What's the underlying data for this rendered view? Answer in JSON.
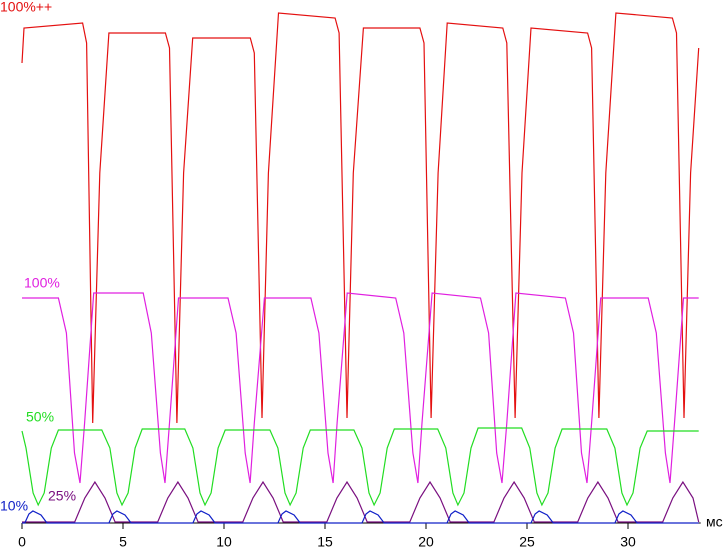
{
  "chart_data": {
    "type": "line",
    "x_label": "мс",
    "xlim": [
      0,
      33.6
    ],
    "xticks": [
      0,
      5,
      10,
      15,
      20,
      25,
      30
    ],
    "ylim": [
      0,
      103
    ],
    "series": [
      {
        "name": "100%++",
        "color": "#e41010",
        "x": [
          0,
          0.1,
          3.0,
          3.2,
          3.5,
          3.85,
          4.3,
          7.1,
          7.3,
          7.67,
          8.0,
          8.45,
          11.3,
          11.5,
          11.88,
          12.2,
          12.7,
          15.5,
          15.7,
          16.09,
          16.4,
          16.9,
          19.7,
          19.9,
          20.25,
          20.6,
          21.05,
          23.8,
          24.0,
          24.41,
          24.75,
          25.2,
          28.0,
          28.2,
          28.56,
          28.9,
          29.4,
          32.2,
          32.4,
          32.77,
          33.1,
          33.5
        ],
        "values": [
          92,
          99,
          100,
          96,
          20,
          70,
          98,
          98,
          95,
          20,
          70,
          97,
          97,
          94,
          21,
          70,
          102,
          101,
          98,
          21,
          70,
          99,
          99,
          96,
          21,
          70,
          100,
          99,
          96,
          21,
          70,
          99,
          98,
          95,
          21,
          70,
          102,
          101,
          98,
          21,
          70,
          95
        ]
      },
      {
        "name": "100%",
        "color": "#e020e0",
        "x": [
          0,
          1.8,
          2.2,
          2.6,
          2.87,
          3.1,
          3.55,
          6.0,
          6.4,
          6.85,
          7.08,
          7.3,
          7.75,
          10.2,
          10.6,
          11.05,
          11.29,
          11.5,
          12.0,
          14.3,
          14.7,
          15.15,
          15.4,
          15.6,
          16.1,
          18.5,
          18.9,
          19.35,
          19.6,
          19.8,
          20.3,
          22.7,
          23.1,
          23.5,
          23.76,
          24.0,
          24.45,
          26.9,
          27.3,
          27.7,
          27.97,
          28.2,
          28.65,
          31.0,
          31.4,
          31.85,
          32.08,
          32.3,
          32.75,
          33.5
        ],
        "values": [
          45,
          45,
          38,
          14,
          8,
          20,
          46,
          46,
          38,
          14,
          8,
          20,
          45,
          45,
          38,
          14,
          8,
          20,
          45,
          45,
          38,
          14,
          8,
          20,
          46,
          45,
          38,
          14,
          8,
          20,
          46,
          45,
          38,
          14,
          8,
          20,
          46,
          45,
          38,
          14,
          8,
          20,
          45,
          45,
          38,
          14,
          8,
          20,
          45,
          45
        ]
      },
      {
        "name": "50%",
        "color": "#22dd22",
        "x": [
          0,
          0.2,
          0.55,
          0.8,
          1.1,
          1.45,
          1.8,
          3.95,
          4.35,
          4.7,
          4.95,
          5.25,
          5.6,
          5.95,
          8.06,
          8.46,
          8.81,
          9.06,
          9.36,
          9.71,
          10.06,
          12.27,
          12.67,
          13.02,
          13.27,
          13.57,
          13.92,
          14.27,
          16.43,
          16.83,
          17.18,
          17.43,
          17.73,
          18.08,
          18.43,
          20.58,
          20.98,
          21.33,
          21.58,
          21.88,
          22.23,
          22.58,
          24.74,
          25.14,
          25.49,
          25.74,
          26.04,
          26.39,
          26.74,
          28.95,
          29.35,
          29.7,
          29.95,
          30.25,
          30.6,
          30.95,
          33.5
        ],
        "values": [
          18.4,
          15,
          6,
          3.6,
          6,
          15,
          18.6,
          18.6,
          15,
          6,
          3.6,
          6,
          15,
          18.8,
          18.8,
          15,
          6,
          3.6,
          6,
          15,
          18.6,
          18.6,
          15,
          6,
          3.6,
          6,
          15,
          18.6,
          18.6,
          15,
          6,
          3.6,
          6,
          15,
          18.8,
          18.8,
          15,
          6,
          3.6,
          6,
          15,
          19,
          19,
          15,
          6,
          3.6,
          6,
          15,
          18.8,
          18.8,
          15,
          6,
          3.6,
          6,
          15,
          18.4,
          18.4
        ]
      },
      {
        "name": "25%",
        "color": "#7a1080",
        "x": [
          0,
          2.61,
          3.11,
          3.61,
          4.11,
          4.61,
          6.72,
          7.22,
          7.72,
          8.22,
          8.72,
          10.93,
          11.43,
          11.93,
          12.43,
          12.93,
          15.09,
          15.59,
          16.09,
          16.59,
          17.09,
          19.2,
          19.7,
          20.2,
          20.7,
          21.2,
          23.36,
          23.86,
          24.36,
          24.86,
          25.36,
          27.51,
          28.01,
          28.51,
          29.01,
          29.51,
          31.72,
          32.22,
          32.72,
          33.22,
          33.5
        ],
        "values": [
          0.2,
          0.2,
          5,
          8.2,
          5,
          0.2,
          0.2,
          5,
          8.2,
          5,
          0.2,
          0.2,
          5,
          8.2,
          5,
          0.2,
          0.2,
          5,
          8.2,
          5,
          0.2,
          0.2,
          5,
          8.2,
          5,
          0.2,
          0.2,
          5,
          8.2,
          5,
          0.2,
          0.2,
          5,
          8.2,
          5,
          0.2,
          0.2,
          5,
          8.2,
          5,
          0.2
        ]
      },
      {
        "name": "10%",
        "color": "#1020c8",
        "x": [
          0,
          0.14,
          0.34,
          0.54,
          0.94,
          1.24,
          4.3,
          4.5,
          4.7,
          5.1,
          5.4,
          8.46,
          8.66,
          8.86,
          9.26,
          9.56,
          12.67,
          12.87,
          13.07,
          13.47,
          13.77,
          16.83,
          17.03,
          17.23,
          17.63,
          17.93,
          21.04,
          21.24,
          21.44,
          21.84,
          22.14,
          25.2,
          25.4,
          25.6,
          26.0,
          26.3,
          29.35,
          29.55,
          29.75,
          30.15,
          30.45,
          33.5
        ],
        "values": [
          0,
          0,
          1.8,
          2.4,
          1.6,
          0,
          0,
          1.8,
          2.4,
          1.6,
          0,
          0,
          1.8,
          2.4,
          1.6,
          0,
          0,
          1.8,
          2.4,
          1.6,
          0,
          0,
          1.8,
          2.4,
          1.6,
          0,
          0,
          1.8,
          2.4,
          1.6,
          0,
          0,
          1.8,
          2.4,
          1.6,
          0,
          0,
          1.8,
          2.4,
          1.6,
          0,
          0
        ]
      }
    ]
  }
}
